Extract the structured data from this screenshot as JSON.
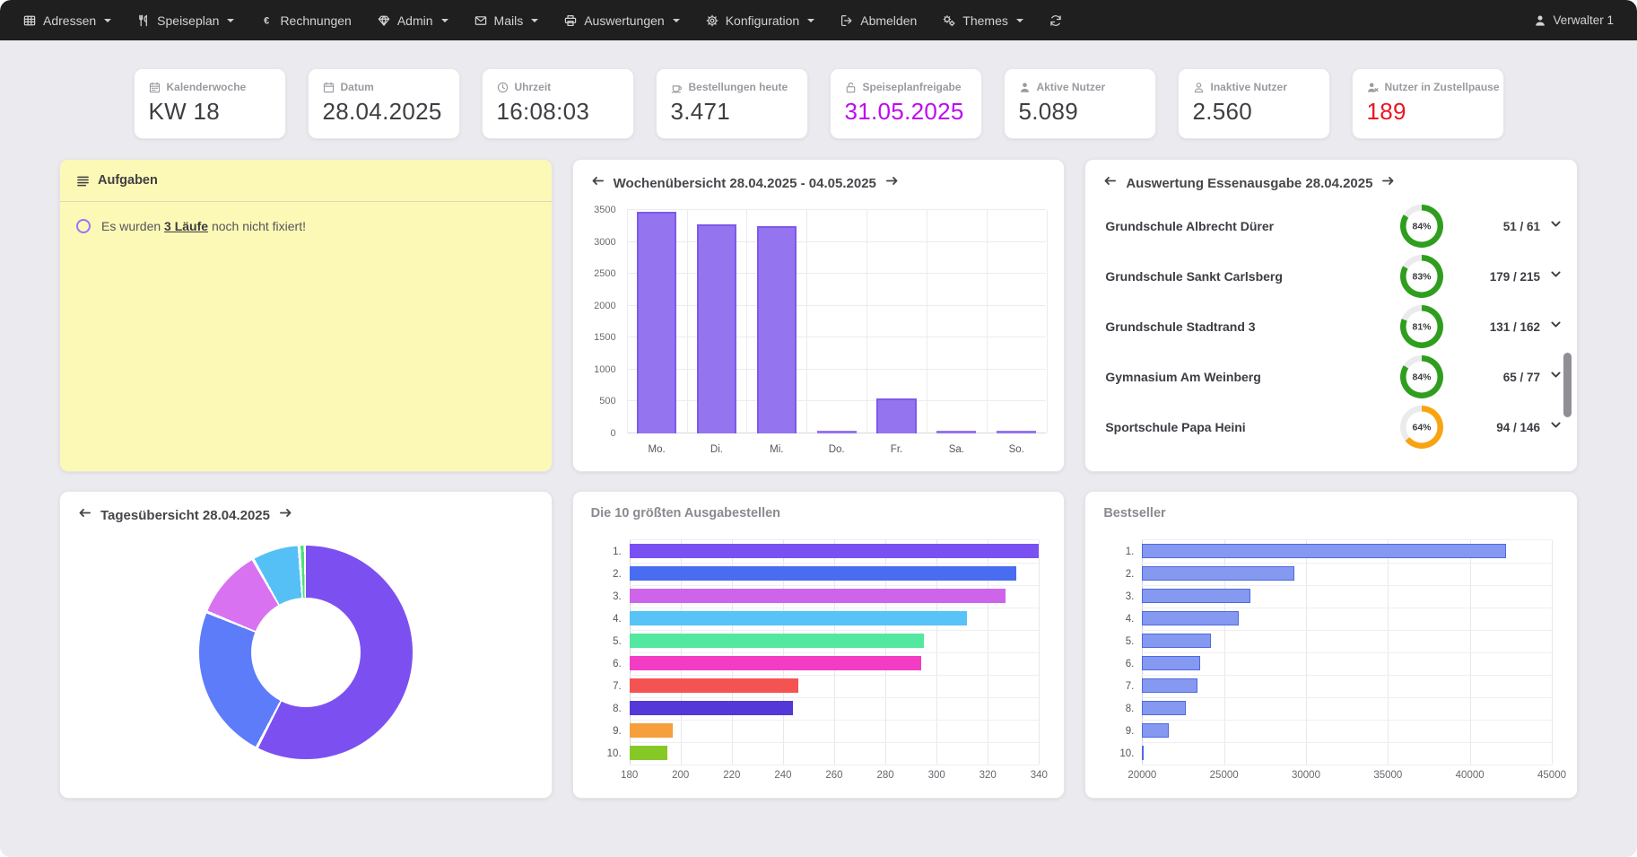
{
  "navbar": {
    "bg": "#1f1f1f",
    "items": [
      {
        "label": "Adressen",
        "icon": "table-icon",
        "caret": true
      },
      {
        "label": "Speiseplan",
        "icon": "utensils-icon",
        "caret": true
      },
      {
        "label": "Rechnungen",
        "icon": "euro-icon",
        "caret": false
      },
      {
        "label": "Admin",
        "icon": "gem-icon",
        "caret": true
      },
      {
        "label": "Mails",
        "icon": "envelope-icon",
        "caret": true
      },
      {
        "label": "Auswertungen",
        "icon": "printer-icon",
        "caret": true
      },
      {
        "label": "Konfiguration",
        "icon": "gear-icon",
        "caret": true
      },
      {
        "label": "Abmelden",
        "icon": "sign-out-icon",
        "caret": false
      },
      {
        "label": "Themes",
        "icon": "cogs-icon",
        "caret": true
      },
      {
        "label": "",
        "icon": "refresh-icon",
        "caret": false
      }
    ],
    "user": {
      "label": "Verwalter 1",
      "icon": "user-icon"
    }
  },
  "stat_cards": [
    {
      "key": "kalenderwoche",
      "label": "Kalenderwoche",
      "value": "KW 18",
      "icon": "calendar-week-icon",
      "value_color": "#3e3e44"
    },
    {
      "key": "datum",
      "label": "Datum",
      "value": "28.04.2025",
      "icon": "calendar-icon",
      "value_color": "#3e3e44"
    },
    {
      "key": "uhrzeit",
      "label": "Uhrzeit",
      "value": "16:08:03",
      "icon": "clock-icon",
      "value_color": "#3e3e44"
    },
    {
      "key": "bestellungen-heute",
      "label": "Bestellungen heute",
      "value": "3.471",
      "icon": "coffee-icon",
      "value_color": "#3e3e44"
    },
    {
      "key": "speiseplanfreigabe",
      "label": "Speiseplanfreigabe",
      "value": "31.05.2025",
      "icon": "unlock-icon",
      "value_color": "#bd0af0"
    },
    {
      "key": "aktive-nutzer",
      "label": "Aktive Nutzer",
      "value": "5.089",
      "icon": "user-icon",
      "value_color": "#3e3e44"
    },
    {
      "key": "inaktive-nutzer",
      "label": "Inaktive Nutzer",
      "value": "2.560",
      "icon": "user-outline-icon",
      "value_color": "#3e3e44"
    },
    {
      "key": "nutzer-in-zustellpause",
      "label": "Nutzer in Zustellpause",
      "value": "189",
      "icon": "user-x-icon",
      "value_color": "#ea1621"
    }
  ],
  "tasks_panel": {
    "title": "Aufgaben",
    "icon": "list-icon",
    "items": [
      {
        "text_before": "Es wurden ",
        "link_text": "3 Läufe",
        "text_after": " noch nicht fixiert!",
        "bullet_color": "#9775fa"
      }
    ]
  },
  "week_panel": {
    "title": "Wochenübersicht 28.04.2025 - 04.05.2025"
  },
  "distribution_panel": {
    "title": "Auswertung Essenausgabe 28.04.2025",
    "rows": [
      {
        "name": "Grundschule Albrecht Dürer",
        "percent": 84,
        "percent_label": "84%",
        "count": "51 / 61",
        "ring_color": "#2f9e1e"
      },
      {
        "name": "Grundschule Sankt Carlsberg",
        "percent": 83,
        "percent_label": "83%",
        "count": "179 / 215",
        "ring_color": "#2f9e1e"
      },
      {
        "name": "Grundschule Stadtrand 3",
        "percent": 81,
        "percent_label": "81%",
        "count": "131 / 162",
        "ring_color": "#2f9e1e"
      },
      {
        "name": "Gymnasium Am Weinberg",
        "percent": 84,
        "percent_label": "84%",
        "count": "65 / 77",
        "ring_color": "#2f9e1e"
      },
      {
        "name": "Sportschule Papa Heini",
        "percent": 64,
        "percent_label": "64%",
        "count": "94 / 146",
        "ring_color": "#f8a411"
      }
    ]
  },
  "day_panel": {
    "title": "Tagesübersicht 28.04.2025"
  },
  "top10_panel": {
    "title": "Die 10 größten Ausgabestellen"
  },
  "bestseller_panel": {
    "title": "Bestseller"
  },
  "chart_data": [
    {
      "id": "week",
      "type": "bar",
      "title": "Wochenübersicht 28.04.2025 - 04.05.2025",
      "categories": [
        "Mo.",
        "Di.",
        "Mi.",
        "Do.",
        "Fr.",
        "Sa.",
        "So."
      ],
      "values": [
        3470,
        3270,
        3250,
        20,
        555,
        25,
        25
      ],
      "ylim": [
        0,
        3500
      ],
      "yticks": [
        0,
        500,
        1000,
        1500,
        2000,
        2500,
        3000,
        3500
      ],
      "bar_color": "#9574f0",
      "bar_border": "#7d5ae8",
      "grid": true,
      "legend": "none"
    },
    {
      "id": "day",
      "type": "pie",
      "title": "Tagesübersicht 28.04.2025",
      "values_percent": [
        57.8,
        23.6,
        10.6,
        7.2,
        0.8
      ],
      "colors": [
        "#7c50f0",
        "#5c7cfa",
        "#d972f0",
        "#55c0f5",
        "#4ce07a"
      ],
      "donut_hole": 0.51,
      "legend": "none"
    },
    {
      "id": "top10",
      "type": "bar-horizontal",
      "title": "Die 10 größten Ausgabestellen",
      "categories": [
        "1.",
        "2.",
        "3.",
        "4.",
        "5.",
        "6.",
        "7.",
        "8.",
        "9.",
        "10."
      ],
      "values": [
        340,
        331,
        327,
        312,
        295,
        294,
        246,
        244,
        197,
        195
      ],
      "xlim": [
        180,
        340
      ],
      "xticks": [
        180,
        200,
        220,
        240,
        260,
        280,
        300,
        320,
        340
      ],
      "colors": [
        "#7950f2",
        "#4a6cf0",
        "#ce64ea",
        "#57c3f7",
        "#53e8a0",
        "#f23cc4",
        "#f55252",
        "#5438d8",
        "#f5a03c",
        "#86c926"
      ],
      "legend": "none"
    },
    {
      "id": "bestseller",
      "type": "bar-horizontal",
      "title": "Bestseller",
      "categories": [
        "1.",
        "2.",
        "3.",
        "4.",
        "5.",
        "6.",
        "7.",
        "8.",
        "9.",
        "10."
      ],
      "values": [
        42200,
        29300,
        26600,
        25900,
        24200,
        23550,
        23400,
        22650,
        21600,
        20100
      ],
      "xlim": [
        20000,
        45000
      ],
      "xticks": [
        20000,
        25000,
        30000,
        35000,
        40000,
        45000
      ],
      "bar_color": "#8599f0",
      "bar_border": "#4f6ae0",
      "legend": "none"
    }
  ]
}
